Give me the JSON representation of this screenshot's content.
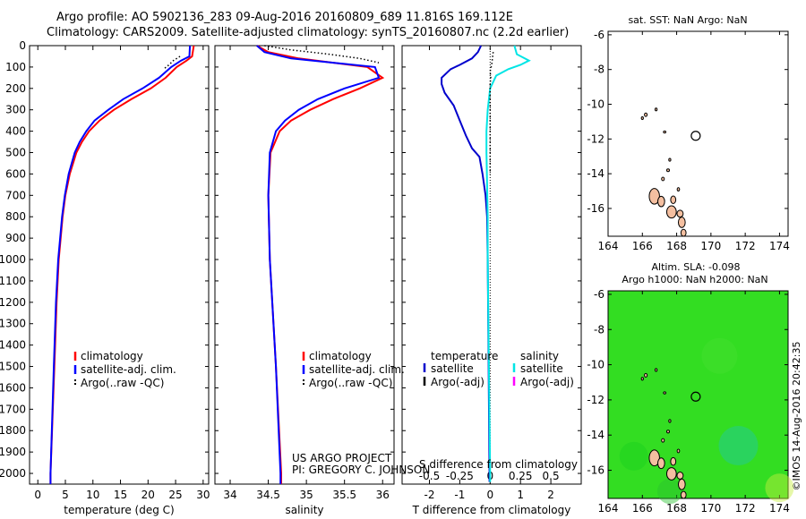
{
  "header": {
    "line1": "Argo profile: AO 5902136_283 09-Aug-2016 20160809_689 11.816S 169.112E",
    "line2": "Climatology: CARS2009. Satellite-adjusted climatology: synTS_20160807.nc (2.2d earlier)"
  },
  "colors": {
    "climatology": "#ff0000",
    "satellite_clim": "#0000ff",
    "argo": "#000000",
    "sat_temperature": "#0000cc",
    "sat_salinity": "#00e5e5",
    "argo_salinity_adj": "#ff00ff",
    "land": "#f4bfa0",
    "sla_field": "#33dd22"
  },
  "legend_main": {
    "climatology": "climatology",
    "satellite": "satellite-adj. clim.",
    "argo": "Argo(..raw -QC)"
  },
  "legend_diff": {
    "temperature_header": "temperature",
    "salinity_header": "salinity",
    "satellite": "satellite",
    "argo_adj": "Argo(-adj)"
  },
  "credit": {
    "line1": "US ARGO PROJECT",
    "line2": "PI: GREGORY C. JOHNSON"
  },
  "maps": {
    "sst_title": "sat. SST: NaN Argo: NaN",
    "sla_title1": "Altim. SLA: -0.098",
    "sla_title2": "Argo h1000: NaN h2000: NaN",
    "stamp": "©IMOS 14-Aug-2016 20:42:35",
    "lon_ticks": [
      "164",
      "166",
      "168",
      "170",
      "172",
      "174"
    ],
    "lat_ticks": [
      "-6",
      "-8",
      "-10",
      "-12",
      "-14",
      "-16"
    ],
    "lon_range": [
      164,
      174.5
    ],
    "lat_range": [
      -17.6,
      -5.8
    ],
    "float_position": {
      "lon": 169.112,
      "lat": -11.816
    }
  },
  "chart_data": [
    {
      "type": "line",
      "id": "temperature",
      "xlabel": "temperature (deg C)",
      "ylabel": "",
      "xlim": [
        -1.5,
        31
      ],
      "ylim": [
        2050,
        0
      ],
      "xticks": [
        0,
        5,
        10,
        15,
        20,
        25,
        30
      ],
      "yticks": [
        0,
        100,
        200,
        300,
        400,
        500,
        600,
        700,
        800,
        900,
        1000,
        1100,
        1200,
        1300,
        1400,
        1500,
        1600,
        1700,
        1800,
        1900,
        2000
      ],
      "series": [
        {
          "name": "climatology",
          "depth": [
            0,
            50,
            70,
            100,
            150,
            200,
            250,
            300,
            350,
            400,
            450,
            500,
            600,
            700,
            800,
            1000,
            1200,
            1500,
            2000,
            2050
          ],
          "values": [
            28.3,
            28.0,
            27.0,
            25.2,
            23.2,
            20.5,
            17.0,
            13.8,
            11.2,
            9.3,
            8.0,
            7.0,
            5.8,
            5.0,
            4.5,
            3.8,
            3.4,
            3.0,
            2.3,
            2.3
          ]
        },
        {
          "name": "satellite-adj. clim.",
          "depth": [
            0,
            50,
            70,
            100,
            150,
            200,
            250,
            300,
            350,
            400,
            450,
            500,
            600,
            700,
            800,
            1000,
            1200,
            1500,
            2000,
            2050
          ],
          "values": [
            27.6,
            27.5,
            26.0,
            24.2,
            22.0,
            19.0,
            15.5,
            12.8,
            10.3,
            8.8,
            7.6,
            6.7,
            5.6,
            4.9,
            4.4,
            3.7,
            3.3,
            2.9,
            2.3,
            2.3
          ]
        },
        {
          "name": "Argo(..raw -QC)",
          "depth": [
            50,
            70,
            90,
            110
          ],
          "values": [
            25.8,
            24.6,
            23.8,
            22.8
          ]
        }
      ]
    },
    {
      "type": "line",
      "id": "salinity",
      "xlabel": "salinity",
      "ylabel": "",
      "xlim": [
        33.8,
        36.15
      ],
      "ylim": [
        2050,
        0
      ],
      "xticks": [
        34,
        34.5,
        35,
        35.5,
        36
      ],
      "series": [
        {
          "name": "climatology",
          "depth": [
            0,
            30,
            60,
            100,
            150,
            200,
            250,
            300,
            350,
            400,
            500,
            700,
            1000,
            1500,
            2000,
            2050
          ],
          "values": [
            34.35,
            34.5,
            34.9,
            35.8,
            36.0,
            35.7,
            35.35,
            35.05,
            34.8,
            34.65,
            34.53,
            34.5,
            34.52,
            34.6,
            34.67,
            34.67
          ]
        },
        {
          "name": "satellite-adj. clim.",
          "depth": [
            0,
            30,
            60,
            100,
            150,
            200,
            250,
            300,
            350,
            400,
            500,
            700,
            1000,
            1500,
            2000,
            2050
          ],
          "values": [
            34.35,
            34.45,
            34.8,
            35.9,
            35.95,
            35.5,
            35.15,
            34.9,
            34.72,
            34.6,
            34.52,
            34.5,
            34.52,
            34.6,
            34.66,
            34.66
          ]
        },
        {
          "name": "Argo(..raw -QC)",
          "depth": [
            0,
            20,
            40,
            60,
            80
          ],
          "values": [
            34.45,
            34.8,
            35.3,
            35.7,
            35.95
          ]
        }
      ]
    },
    {
      "type": "line",
      "id": "difference",
      "xlabel": "T difference from climatology",
      "ylabel": "",
      "xlabel_top": "S difference from climatology",
      "xlim": [
        -2.9,
        3.0
      ],
      "ylim": [
        2050,
        0
      ],
      "xticks": [
        -2,
        -1,
        0,
        1,
        2
      ],
      "xticks_top": [
        -0.5,
        -0.25,
        0,
        0.25,
        0.5
      ],
      "xticks_top_labels": [
        "-0.5",
        "-0.25",
        "0",
        "0.25",
        "0.5"
      ],
      "series": [
        {
          "name": "temperature satellite",
          "depth": [
            0,
            30,
            60,
            90,
            110,
            150,
            180,
            220,
            280,
            350,
            420,
            480,
            520,
            600,
            700,
            800,
            1000,
            1500,
            2000,
            2040
          ],
          "values": [
            -0.3,
            -0.4,
            -0.6,
            -1.0,
            -1.3,
            -1.6,
            -1.6,
            -1.5,
            -1.2,
            -1.0,
            -0.8,
            -0.6,
            -0.35,
            -0.25,
            -0.15,
            -0.1,
            -0.08,
            -0.05,
            -0.02,
            -0.02
          ]
        },
        {
          "name": "salinity satellite",
          "depth": [
            0,
            40,
            70,
            90,
            110,
            140,
            200,
            300,
            400,
            500,
            800,
            1000,
            1500,
            2000,
            2040
          ],
          "values": [
            0.2,
            0.22,
            0.32,
            0.25,
            0.15,
            0.05,
            0.0,
            -0.02,
            -0.03,
            -0.03,
            -0.02,
            -0.02,
            -0.01,
            0.0,
            0.0
          ]
        },
        {
          "name": "Argo(-adj) T",
          "depth": [
            30,
            90,
            120,
            150,
            180,
            250,
            400,
            600
          ],
          "values": [
            0.1,
            0.05,
            0.0,
            0.02,
            0.0,
            0.0,
            0.0,
            0.0
          ]
        }
      ]
    }
  ]
}
